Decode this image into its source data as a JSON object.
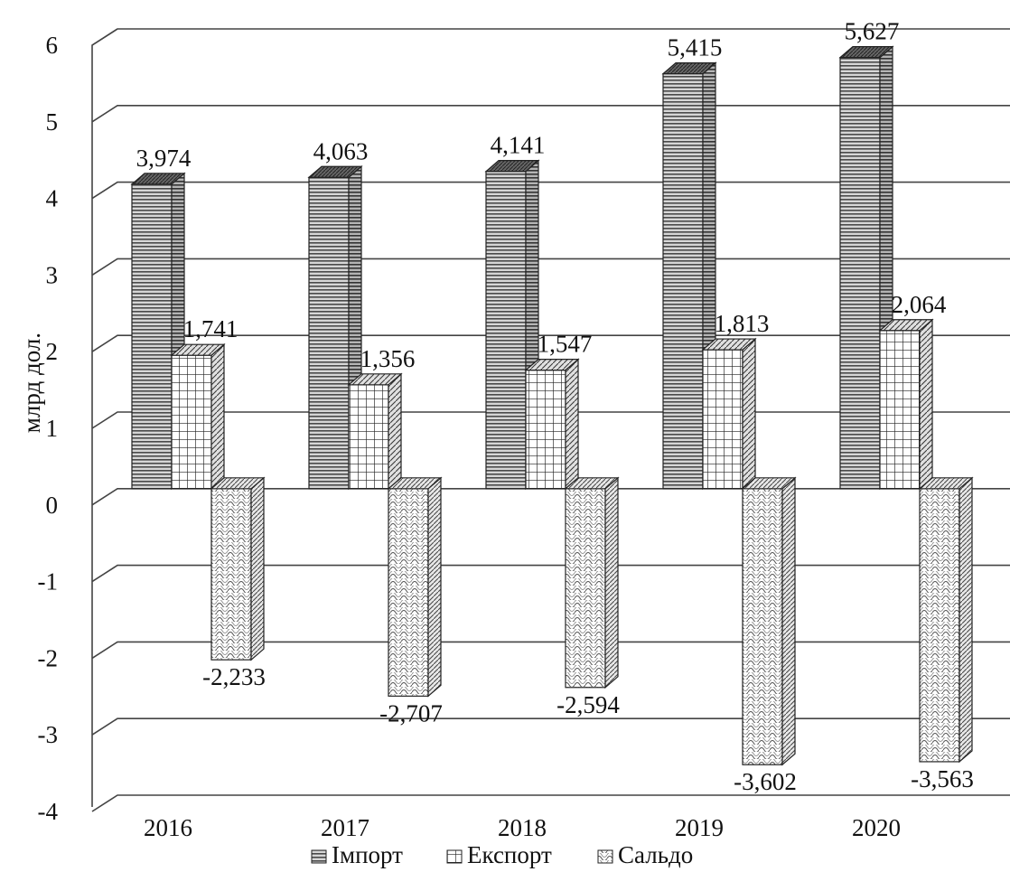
{
  "chart_data": {
    "type": "bar",
    "title": "",
    "xlabel": "",
    "ylabel": "млрд дол.",
    "categories": [
      "2016",
      "2017",
      "2018",
      "2019",
      "2020"
    ],
    "ylim": [
      -4,
      6
    ],
    "yticks": [
      6,
      5,
      4,
      3,
      2,
      1,
      0,
      -1,
      -2,
      -3,
      -4
    ],
    "grid": true,
    "legend_position": "bottom",
    "style": "3d-clustered-column-patterned",
    "series": [
      {
        "name": "Імпорт",
        "pattern": "horizontal-lines",
        "values": [
          3.974,
          4.063,
          4.141,
          5.415,
          5.627
        ],
        "labels": [
          "3,974",
          "4,063",
          "4,141",
          "5,415",
          "5,627"
        ]
      },
      {
        "name": "Експорт",
        "pattern": "grid",
        "values": [
          1.741,
          1.356,
          1.547,
          1.813,
          2.064
        ],
        "labels": [
          "1,741",
          "1,356",
          "1,547",
          "1,813",
          "2,064"
        ]
      },
      {
        "name": "Сальдо",
        "pattern": "waves",
        "values": [
          -2.233,
          -2.707,
          -2.594,
          -3.602,
          -3.563
        ],
        "labels": [
          "-2,233",
          "-2,707",
          "-2,594",
          "-3,602",
          "-3,563"
        ]
      }
    ]
  },
  "legend": {
    "items": [
      {
        "icon": "horizontal-lines-swatch-icon",
        "label": "Імпорт"
      },
      {
        "icon": "grid-swatch-icon",
        "label": "Експорт"
      },
      {
        "icon": "wave-swatch-icon",
        "label": "Сальдо"
      }
    ]
  }
}
